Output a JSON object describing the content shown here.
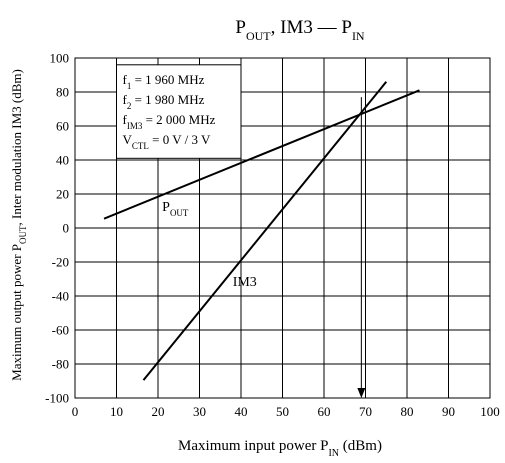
{
  "chart_data": {
    "type": "line",
    "title": {
      "main": "P",
      "sub1": "OUT",
      "mid": ", IM3 — P",
      "sub2": "IN"
    },
    "xlabel": {
      "main": "Maximum input power  P",
      "sub": "IN",
      "tail": "  (dBm)"
    },
    "ylabel": {
      "main": "Maximum output power  P",
      "sub": "OUT",
      "tail": ", Inter modulation IM3  (dBm)"
    },
    "xlim": [
      0,
      100
    ],
    "ylim": [
      -100,
      100
    ],
    "x_ticks": [
      "0",
      "10",
      "20",
      "30",
      "40",
      "50",
      "60",
      "70",
      "80",
      "90",
      "100"
    ],
    "y_ticks": [
      "100",
      "80",
      "60",
      "40",
      "20",
      "0",
      "-20",
      "-40",
      "-60",
      "-80",
      "-100"
    ],
    "x_tick_values": [
      0,
      10,
      20,
      30,
      40,
      50,
      60,
      70,
      80,
      90,
      100
    ],
    "y_tick_values": [
      100,
      80,
      60,
      40,
      20,
      0,
      -20,
      -40,
      -60,
      -80,
      -100
    ],
    "grid": true,
    "series": [
      {
        "name": "POUT",
        "label": {
          "main": "P",
          "sub": "OUT"
        },
        "x": [
          7,
          83
        ],
        "y": [
          5.5,
          81
        ]
      },
      {
        "name": "IM3",
        "label": {
          "main": "IM3",
          "sub": ""
        },
        "x": [
          16.5,
          75
        ],
        "y": [
          -89.5,
          86
        ]
      }
    ],
    "series_label_positions": [
      {
        "x": 21,
        "y": 10
      },
      {
        "x": 38,
        "y": -34
      }
    ],
    "annotation_arrow": {
      "x": 69,
      "y_start": 77,
      "y_end": -100
    },
    "conditions_box": {
      "x0": 10,
      "y0": 96,
      "x1": 40,
      "y1": 41,
      "lines": [
        {
          "main": "f",
          "sub": "1",
          "tail": " = 1 960 MHz"
        },
        {
          "main": "f",
          "sub": "2",
          "tail": " = 1 980 MHz"
        },
        {
          "main": "f",
          "sub": "IM3",
          "tail": " = 2 000 MHz"
        },
        {
          "main": "V",
          "sub": "CTL",
          "tail": " = 0 V / 3 V"
        }
      ]
    },
    "colors": {
      "line": "#000000",
      "grid": "#000000",
      "background": "#ffffff"
    }
  }
}
